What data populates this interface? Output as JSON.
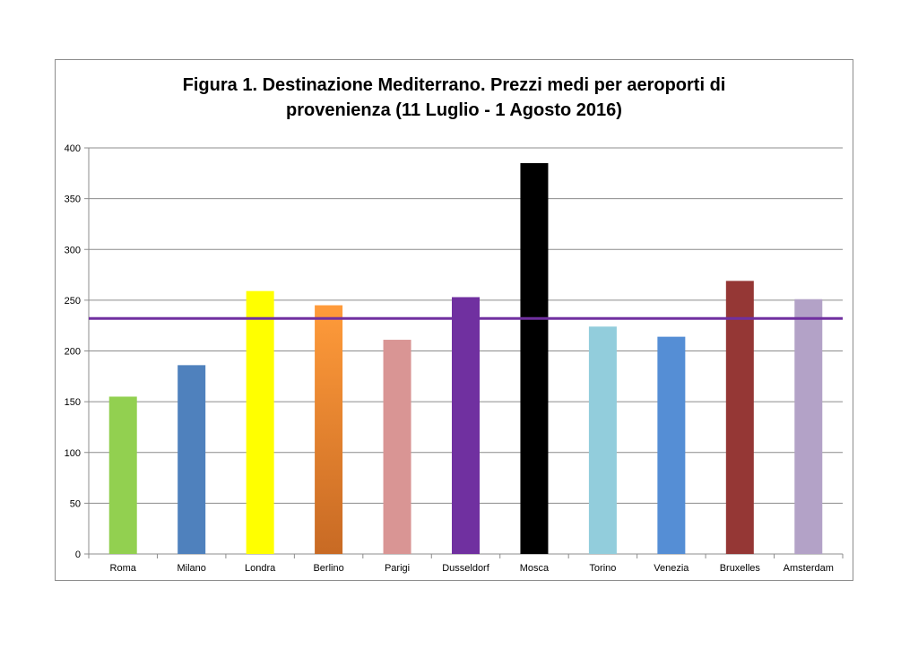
{
  "chart_data": {
    "type": "bar",
    "title_lines": [
      "Figura 1. Destinazione Mediterrano. Prezzi medi per aeroporti di",
      "provenienza (11 Luglio  - 1 Agosto 2016)"
    ],
    "categories": [
      "Roma",
      "Milano",
      "Londra",
      "Berlino",
      "Parigi",
      "Dusseldorf",
      "Mosca",
      "Torino",
      "Venezia",
      "Bruxelles",
      "Amsterdam"
    ],
    "values": [
      155,
      186,
      259,
      245,
      211,
      253,
      385,
      224,
      214,
      269,
      251
    ],
    "colors": [
      "#92d050",
      "#4f81bd",
      "#ffff00",
      "#f79646",
      "#d99594",
      "#7030a0",
      "#000000",
      "#92cddc",
      "#558ed5",
      "#953735",
      "#b3a2c7"
    ],
    "berlino_gradient": [
      "#ff9b3a",
      "#c86a24"
    ],
    "ylim": [
      0,
      400
    ],
    "yticks": [
      0,
      50,
      100,
      150,
      200,
      250,
      300,
      350,
      400
    ],
    "average_line": {
      "value": 232,
      "color": "#7030a0"
    },
    "grid": true,
    "legend": "none",
    "xlabel": "",
    "ylabel": ""
  }
}
